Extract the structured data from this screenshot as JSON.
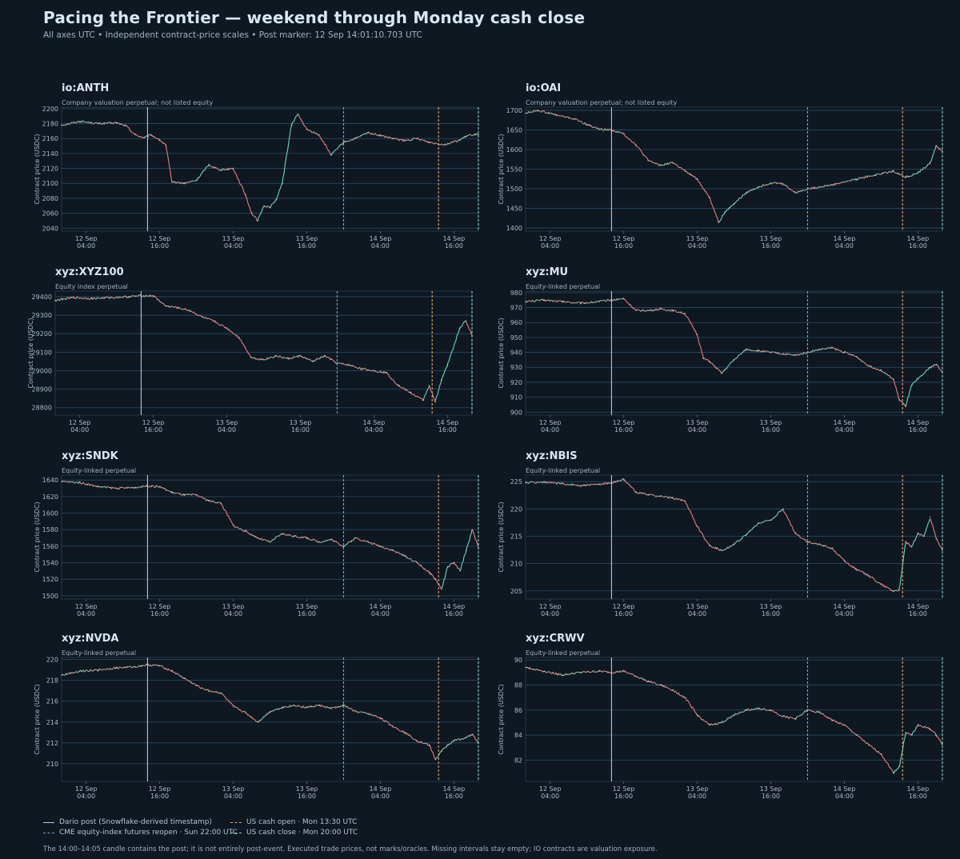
{
  "title": "Pacing the Frontier — weekend through Monday cash close",
  "subtitle": "All axes UTC  •  Independent contract-price scales  •  Post marker: 12 Sep 14:01:10.703 UTC",
  "legend": {
    "dario": "Dario post (Snowflake-derived timestamp)",
    "cme": "CME equity-index futures reopen · Sun 22:00 UTC",
    "us_open": "US cash open · Mon 13:30 UTC",
    "us_close": "US cash close · Mon 20:00 UTC"
  },
  "footnote": "The 14:00–14:05 candle contains the post; it is not entirely post-event. Executed trade prices, not marks/oracles. Missing intervals stay empty; IO contracts are valuation exposure.",
  "colors": {
    "background": "#0f1821",
    "grid": "#2d4a63",
    "up": "#6fd2b8",
    "down": "#e07e7e",
    "dario": "#c9b7ee",
    "cme": "#6fa6d6",
    "us_open": "#e3a76c",
    "us_close": "#8fd0c0"
  },
  "chart_data": [
    {
      "id": "io:ANTH",
      "title": "io:ANTH",
      "subtitle": "Company valuation perpetual; not listed equity",
      "type": "line",
      "ylabel": "Contract price (USDC)",
      "ylim": [
        2036,
        2202
      ],
      "yticks": [
        2040,
        2060,
        2080,
        2100,
        2120,
        2140,
        2160,
        2180,
        2200
      ],
      "xticks": [
        {
          "l1": "12 Sep",
          "l2": "04:00"
        },
        {
          "l1": "12 Sep",
          "l2": "16:00"
        },
        {
          "l1": "13 Sep",
          "l2": "04:00"
        },
        {
          "l1": "13 Sep",
          "l2": "16:00"
        },
        {
          "l1": "14 Sep",
          "l2": "04:00"
        },
        {
          "l1": "14 Sep",
          "l2": "16:00"
        }
      ],
      "x_hours": [
        0,
        3,
        6,
        9,
        10.5,
        12,
        13.5,
        14.6,
        16,
        17,
        18,
        20,
        22,
        24,
        25,
        26,
        28,
        30,
        31,
        32,
        33,
        34,
        35,
        36,
        37.5,
        38.5,
        40,
        42,
        44,
        46,
        48,
        50,
        52,
        54,
        56,
        58,
        60,
        62.5,
        65,
        66,
        67.5,
        68
      ],
      "values": [
        2178,
        2183,
        2180,
        2181,
        2177,
        2165,
        2161,
        2165,
        2158,
        2151,
        2102,
        2100,
        2104,
        2125,
        2121,
        2118,
        2120,
        2085,
        2060,
        2050,
        2070,
        2068,
        2078,
        2100,
        2178,
        2193,
        2172,
        2165,
        2138,
        2155,
        2160,
        2168,
        2164,
        2160,
        2157,
        2160,
        2155,
        2152,
        2158,
        2163,
        2166,
        2165
      ]
    },
    {
      "id": "io:OAI",
      "title": "io:OAI",
      "subtitle": "Company valuation perpetual; not listed equity",
      "type": "line",
      "ylabel": "Contract price (USDC)",
      "ylim": [
        1392,
        1708
      ],
      "yticks": [
        1400,
        1450,
        1500,
        1550,
        1600,
        1650,
        1700
      ],
      "xticks": [
        {
          "l1": "12 Sep",
          "l2": "04:00"
        },
        {
          "l1": "12 Sep",
          "l2": "16:00"
        },
        {
          "l1": "13 Sep",
          "l2": "04:00"
        },
        {
          "l1": "13 Sep",
          "l2": "16:00"
        },
        {
          "l1": "14 Sep",
          "l2": "04:00"
        },
        {
          "l1": "14 Sep",
          "l2": "16:00"
        }
      ],
      "x_hours": [
        0,
        2,
        5,
        8,
        10,
        12,
        14,
        16,
        18,
        20,
        22,
        24,
        26,
        28,
        30,
        31.5,
        32.5,
        34,
        36,
        38,
        40,
        42,
        44,
        46,
        50,
        54,
        57,
        60,
        62,
        64,
        66,
        67,
        68
      ],
      "values": [
        1693,
        1700,
        1688,
        1678,
        1664,
        1652,
        1650,
        1640,
        1612,
        1572,
        1560,
        1567,
        1545,
        1525,
        1478,
        1415,
        1440,
        1462,
        1490,
        1505,
        1515,
        1513,
        1490,
        1500,
        1510,
        1525,
        1535,
        1545,
        1530,
        1540,
        1565,
        1610,
        1595
      ]
    },
    {
      "id": "xyz:XYZ100",
      "title": "xyz:XYZ100",
      "subtitle": "Equity index perpetual",
      "type": "line",
      "ylabel": "Contract price (USDC)",
      "ylim": [
        28760,
        29430
      ],
      "yticks": [
        28800,
        28900,
        29000,
        29100,
        29200,
        29300,
        29400
      ],
      "xticks": [
        {
          "l1": "12 Sep",
          "l2": "04:00"
        },
        {
          "l1": "12 Sep",
          "l2": "16:00"
        },
        {
          "l1": "13 Sep",
          "l2": "04:00"
        },
        {
          "l1": "13 Sep",
          "l2": "16:00"
        },
        {
          "l1": "14 Sep",
          "l2": "04:00"
        },
        {
          "l1": "14 Sep",
          "l2": "16:00"
        }
      ],
      "x_hours": [
        0,
        3,
        6,
        9,
        12,
        14,
        16,
        18,
        20,
        22,
        24,
        26,
        28,
        30,
        32,
        34,
        36,
        38,
        40,
        42,
        44,
        46,
        48,
        50,
        52,
        54,
        56,
        58,
        60,
        61,
        62,
        63,
        64,
        66,
        67,
        68
      ],
      "values": [
        29380,
        29395,
        29390,
        29395,
        29400,
        29405,
        29405,
        29350,
        29340,
        29325,
        29290,
        29265,
        29230,
        29180,
        29070,
        29060,
        29080,
        29065,
        29080,
        29050,
        29080,
        29040,
        29030,
        29010,
        29000,
        28990,
        28920,
        28880,
        28840,
        28920,
        28830,
        28950,
        29030,
        29230,
        29270,
        29190
      ]
    },
    {
      "id": "xyz:MU",
      "title": "xyz:MU",
      "subtitle": "Equity-linked perpetual",
      "type": "line",
      "ylabel": "Contract price (USDC)",
      "ylim": [
        898,
        981
      ],
      "yticks": [
        900,
        910,
        920,
        930,
        940,
        950,
        960,
        970,
        980
      ],
      "xticks": [
        {
          "l1": "12 Sep",
          "l2": "04:00"
        },
        {
          "l1": "12 Sep",
          "l2": "16:00"
        },
        {
          "l1": "13 Sep",
          "l2": "04:00"
        },
        {
          "l1": "13 Sep",
          "l2": "16:00"
        },
        {
          "l1": "14 Sep",
          "l2": "04:00"
        },
        {
          "l1": "14 Sep",
          "l2": "16:00"
        }
      ],
      "x_hours": [
        0,
        3,
        6,
        9,
        12,
        14,
        16,
        18,
        20,
        22,
        24,
        26,
        28,
        29,
        30,
        32,
        34,
        36,
        38,
        40,
        42,
        44,
        46,
        48,
        50,
        52,
        54,
        56,
        58,
        60,
        61,
        62,
        63,
        64,
        66,
        67,
        68
      ],
      "values": [
        974,
        975,
        974,
        973,
        974,
        975,
        976,
        968,
        968,
        969,
        968,
        966,
        952,
        936,
        934,
        926,
        935,
        942,
        941,
        940,
        939,
        938,
        940,
        942,
        943,
        940,
        937,
        931,
        928,
        922,
        908,
        904,
        918,
        922,
        930,
        932,
        927
      ]
    },
    {
      "id": "xyz:SNDK",
      "title": "xyz:SNDK",
      "subtitle": "Equity-linked perpetual",
      "type": "line",
      "ylabel": "Contract price (USDC)",
      "ylim": [
        1496,
        1646
      ],
      "yticks": [
        1500,
        1520,
        1540,
        1560,
        1580,
        1600,
        1620,
        1640
      ],
      "xticks": [
        {
          "l1": "12 Sep",
          "l2": "04:00"
        },
        {
          "l1": "12 Sep",
          "l2": "16:00"
        },
        {
          "l1": "13 Sep",
          "l2": "04:00"
        },
        {
          "l1": "13 Sep",
          "l2": "16:00"
        },
        {
          "l1": "14 Sep",
          "l2": "04:00"
        },
        {
          "l1": "14 Sep",
          "l2": "16:00"
        }
      ],
      "x_hours": [
        0,
        3,
        6,
        9,
        12,
        14,
        16,
        18,
        20,
        22,
        24,
        26,
        28,
        30,
        32,
        34,
        36,
        38,
        40,
        42,
        44,
        46,
        48,
        50,
        52,
        54,
        56,
        58,
        60,
        61,
        62,
        63,
        64,
        65,
        66,
        67,
        68
      ],
      "values": [
        1638,
        1637,
        1632,
        1630,
        1631,
        1633,
        1632,
        1625,
        1622,
        1622,
        1615,
        1612,
        1585,
        1578,
        1570,
        1565,
        1575,
        1572,
        1570,
        1565,
        1568,
        1560,
        1570,
        1565,
        1560,
        1555,
        1548,
        1540,
        1528,
        1520,
        1508,
        1535,
        1540,
        1530,
        1555,
        1580,
        1558
      ]
    },
    {
      "id": "xyz:NBIS",
      "title": "xyz:NBIS",
      "subtitle": "Equity-linked perpetual",
      "type": "line",
      "ylabel": "Contract price (USDC)",
      "ylim": [
        203.5,
        226.2
      ],
      "yticks": [
        205,
        210,
        215,
        220,
        225
      ],
      "xticks": [
        {
          "l1": "12 Sep",
          "l2": "04:00"
        },
        {
          "l1": "12 Sep",
          "l2": "16:00"
        },
        {
          "l1": "13 Sep",
          "l2": "04:00"
        },
        {
          "l1": "13 Sep",
          "l2": "16:00"
        },
        {
          "l1": "14 Sep",
          "l2": "04:00"
        },
        {
          "l1": "14 Sep",
          "l2": "16:00"
        }
      ],
      "x_hours": [
        0,
        3,
        6,
        9,
        12,
        14,
        16,
        18,
        20,
        22,
        24,
        26,
        28,
        30,
        32,
        34,
        36,
        38,
        40,
        42,
        44,
        46,
        48,
        50,
        52,
        54,
        56,
        58,
        60,
        61,
        62,
        63,
        64,
        65,
        66,
        67,
        68
      ],
      "values": [
        224.8,
        224.9,
        224.6,
        224.3,
        224.5,
        224.8,
        225.4,
        223.1,
        222.6,
        222.3,
        222.0,
        221.5,
        216.8,
        213.3,
        212.4,
        213.5,
        215.3,
        217.4,
        218.0,
        220.0,
        215.5,
        214.0,
        213.5,
        212.8,
        210.5,
        208.9,
        207.8,
        206.2,
        205.0,
        205.2,
        214.0,
        213.0,
        215.5,
        215.0,
        218.5,
        214.5,
        212.5
      ]
    },
    {
      "id": "xyz:NVDA",
      "title": "xyz:NVDA",
      "subtitle": "Equity-linked perpetual",
      "type": "line",
      "ylabel": "Contract price (USDC)",
      "ylim": [
        208.3,
        220.2
      ],
      "yticks": [
        210,
        212,
        214,
        216,
        218,
        220
      ],
      "xticks": [
        {
          "l1": "12 Sep",
          "l2": "04:00"
        },
        {
          "l1": "12 Sep",
          "l2": "16:00"
        },
        {
          "l1": "13 Sep",
          "l2": "04:00"
        },
        {
          "l1": "13 Sep",
          "l2": "16:00"
        },
        {
          "l1": "14 Sep",
          "l2": "04:00"
        },
        {
          "l1": "14 Sep",
          "l2": "16:00"
        }
      ],
      "x_hours": [
        0,
        3,
        6,
        9,
        12,
        14,
        16,
        18,
        20,
        22,
        24,
        26,
        28,
        30,
        32,
        34,
        36,
        38,
        40,
        42,
        44,
        46,
        48,
        50,
        52,
        54,
        56,
        58,
        60,
        61,
        62,
        63,
        64,
        66,
        67,
        68
      ],
      "values": [
        218.5,
        218.9,
        219.0,
        219.2,
        219.3,
        219.5,
        219.4,
        218.9,
        218.2,
        217.5,
        217.0,
        216.8,
        215.5,
        214.9,
        214.0,
        215.0,
        215.4,
        215.6,
        215.4,
        215.6,
        215.3,
        215.6,
        215.0,
        214.8,
        214.4,
        213.6,
        213.0,
        212.2,
        211.8,
        210.4,
        211.2,
        211.8,
        212.2,
        212.5,
        212.8,
        212.0
      ]
    },
    {
      "id": "xyz:CRWV",
      "title": "xyz:CRWV",
      "subtitle": "Equity-linked perpetual",
      "type": "line",
      "ylabel": "Contract price (USDC)",
      "ylim": [
        80.3,
        90.2
      ],
      "yticks": [
        82,
        84,
        86,
        88,
        90
      ],
      "xticks": [
        {
          "l1": "12 Sep",
          "l2": "04:00"
        },
        {
          "l1": "12 Sep",
          "l2": "16:00"
        },
        {
          "l1": "13 Sep",
          "l2": "04:00"
        },
        {
          "l1": "13 Sep",
          "l2": "16:00"
        },
        {
          "l1": "14 Sep",
          "l2": "04:00"
        },
        {
          "l1": "14 Sep",
          "l2": "16:00"
        }
      ],
      "x_hours": [
        0,
        3,
        6,
        9,
        12,
        14,
        16,
        18,
        20,
        22,
        24,
        26,
        28,
        30,
        32,
        34,
        36,
        38,
        40,
        42,
        44,
        46,
        48,
        50,
        52,
        54,
        56,
        58,
        60,
        61,
        62,
        63,
        64,
        66,
        67,
        68
      ],
      "values": [
        89.4,
        89.1,
        88.8,
        89.0,
        89.1,
        89.0,
        89.1,
        88.7,
        88.3,
        88.0,
        87.6,
        87.0,
        85.6,
        84.8,
        85.0,
        85.6,
        86.0,
        86.1,
        86.0,
        85.5,
        85.3,
        86.0,
        85.8,
        85.2,
        84.8,
        84.0,
        83.2,
        82.5,
        81.0,
        81.5,
        84.2,
        84.0,
        84.8,
        84.5,
        84.0,
        83.3
      ]
    }
  ]
}
